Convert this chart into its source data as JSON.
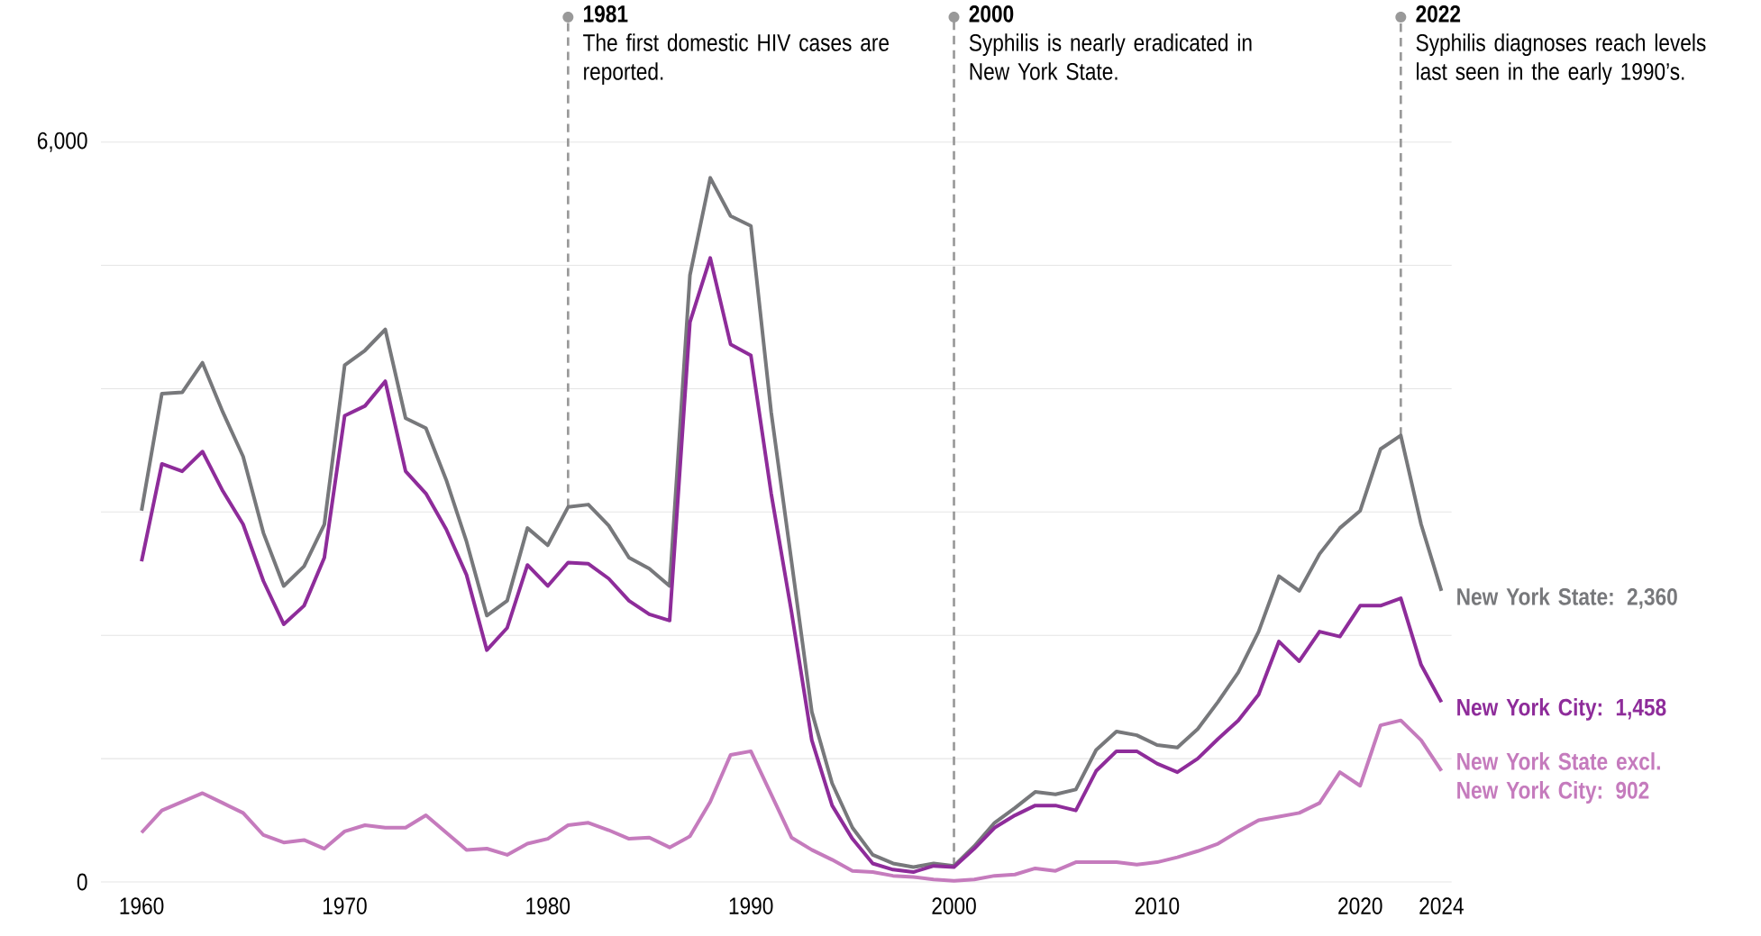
{
  "chart_data": {
    "type": "line",
    "x": [
      1960,
      1961,
      1962,
      1963,
      1964,
      1965,
      1966,
      1967,
      1968,
      1969,
      1970,
      1971,
      1972,
      1973,
      1974,
      1975,
      1976,
      1977,
      1978,
      1979,
      1980,
      1981,
      1982,
      1983,
      1984,
      1985,
      1986,
      1987,
      1988,
      1989,
      1990,
      1991,
      1992,
      1993,
      1994,
      1995,
      1996,
      1997,
      1998,
      1999,
      2000,
      2001,
      2002,
      2003,
      2004,
      2005,
      2006,
      2007,
      2008,
      2009,
      2010,
      2011,
      2012,
      2013,
      2014,
      2015,
      2016,
      2017,
      2018,
      2019,
      2020,
      2021,
      2022,
      2023,
      2024
    ],
    "series": [
      {
        "name": "New York State: 2,360",
        "color": "#77787b",
        "values": [
          3010,
          3960,
          3970,
          4210,
          3810,
          3450,
          2830,
          2400,
          2560,
          2900,
          4190,
          4310,
          4480,
          3760,
          3680,
          3260,
          2760,
          2160,
          2280,
          2870,
          2730,
          3040,
          3060,
          2890,
          2630,
          2540,
          2400,
          4920,
          5710,
          5400,
          5320,
          3810,
          2600,
          1380,
          800,
          440,
          220,
          150,
          120,
          150,
          130,
          290,
          480,
          600,
          730,
          710,
          750,
          1070,
          1220,
          1190,
          1110,
          1090,
          1240,
          1460,
          1700,
          2030,
          2480,
          2360,
          2660,
          2870,
          3010,
          3510,
          3620,
          2900,
          2360
        ]
      },
      {
        "name": "New York City: 1,458",
        "color": "#8e2c9a",
        "values": [
          2600,
          3390,
          3330,
          3490,
          3170,
          2900,
          2440,
          2090,
          2240,
          2630,
          3780,
          3860,
          4060,
          3330,
          3150,
          2860,
          2490,
          1880,
          2060,
          2570,
          2400,
          2590,
          2580,
          2460,
          2280,
          2170,
          2120,
          4540,
          5060,
          4360,
          4270,
          3150,
          2190,
          1150,
          620,
          350,
          150,
          100,
          80,
          130,
          120,
          270,
          440,
          540,
          620,
          620,
          580,
          900,
          1060,
          1060,
          960,
          890,
          1000,
          1160,
          1310,
          1520,
          1950,
          1790,
          2030,
          1990,
          2240,
          2240,
          2300,
          1760,
          1458
        ]
      },
      {
        "name": "New York State excl. New York City: 902",
        "color": "#c57bbd",
        "values": [
          400,
          580,
          650,
          720,
          640,
          560,
          380,
          320,
          340,
          270,
          410,
          460,
          440,
          440,
          540,
          400,
          260,
          270,
          220,
          310,
          350,
          460,
          480,
          420,
          350,
          360,
          280,
          370,
          650,
          1030,
          1060,
          710,
          360,
          260,
          180,
          90,
          80,
          50,
          40,
          20,
          10,
          20,
          50,
          60,
          110,
          90,
          160,
          160,
          160,
          140,
          160,
          200,
          250,
          310,
          410,
          500,
          530,
          560,
          640,
          890,
          780,
          1270,
          1310,
          1150,
          902
        ]
      }
    ],
    "xlim": [
      1958,
      2024.5
    ],
    "ylim": [
      0,
      6000
    ],
    "xticks": [
      1960,
      1970,
      1980,
      1990,
      2000,
      2010,
      2020,
      2024
    ],
    "yticks": [
      0,
      {
        "value": 1000,
        "label": null
      },
      {
        "value": 2000,
        "label": null
      },
      {
        "value": 3000,
        "label": null
      },
      {
        "value": 4000,
        "label": null
      },
      {
        "value": 5000,
        "label": null
      },
      {
        "value": 6000,
        "label": "6,000"
      }
    ],
    "grid": "y",
    "line_style": "solid",
    "ref_lines": [
      {
        "axis": "x",
        "value": 1981,
        "label": "1981",
        "color": "#999999",
        "line_style": "dashed"
      },
      {
        "axis": "x",
        "value": 2000,
        "label": "2000",
        "color": "#999999",
        "line_style": "dashed"
      },
      {
        "axis": "x",
        "value": 2022,
        "label": "2022",
        "color": "#999999",
        "line_style": "dashed"
      }
    ],
    "annotations": [
      "The first domestic HIV cases are reported.",
      "Syphilis is nearly eradicated in New York State.",
      "Syphilis diagnoses reach levels last seen in the early 1990’s."
    ]
  }
}
